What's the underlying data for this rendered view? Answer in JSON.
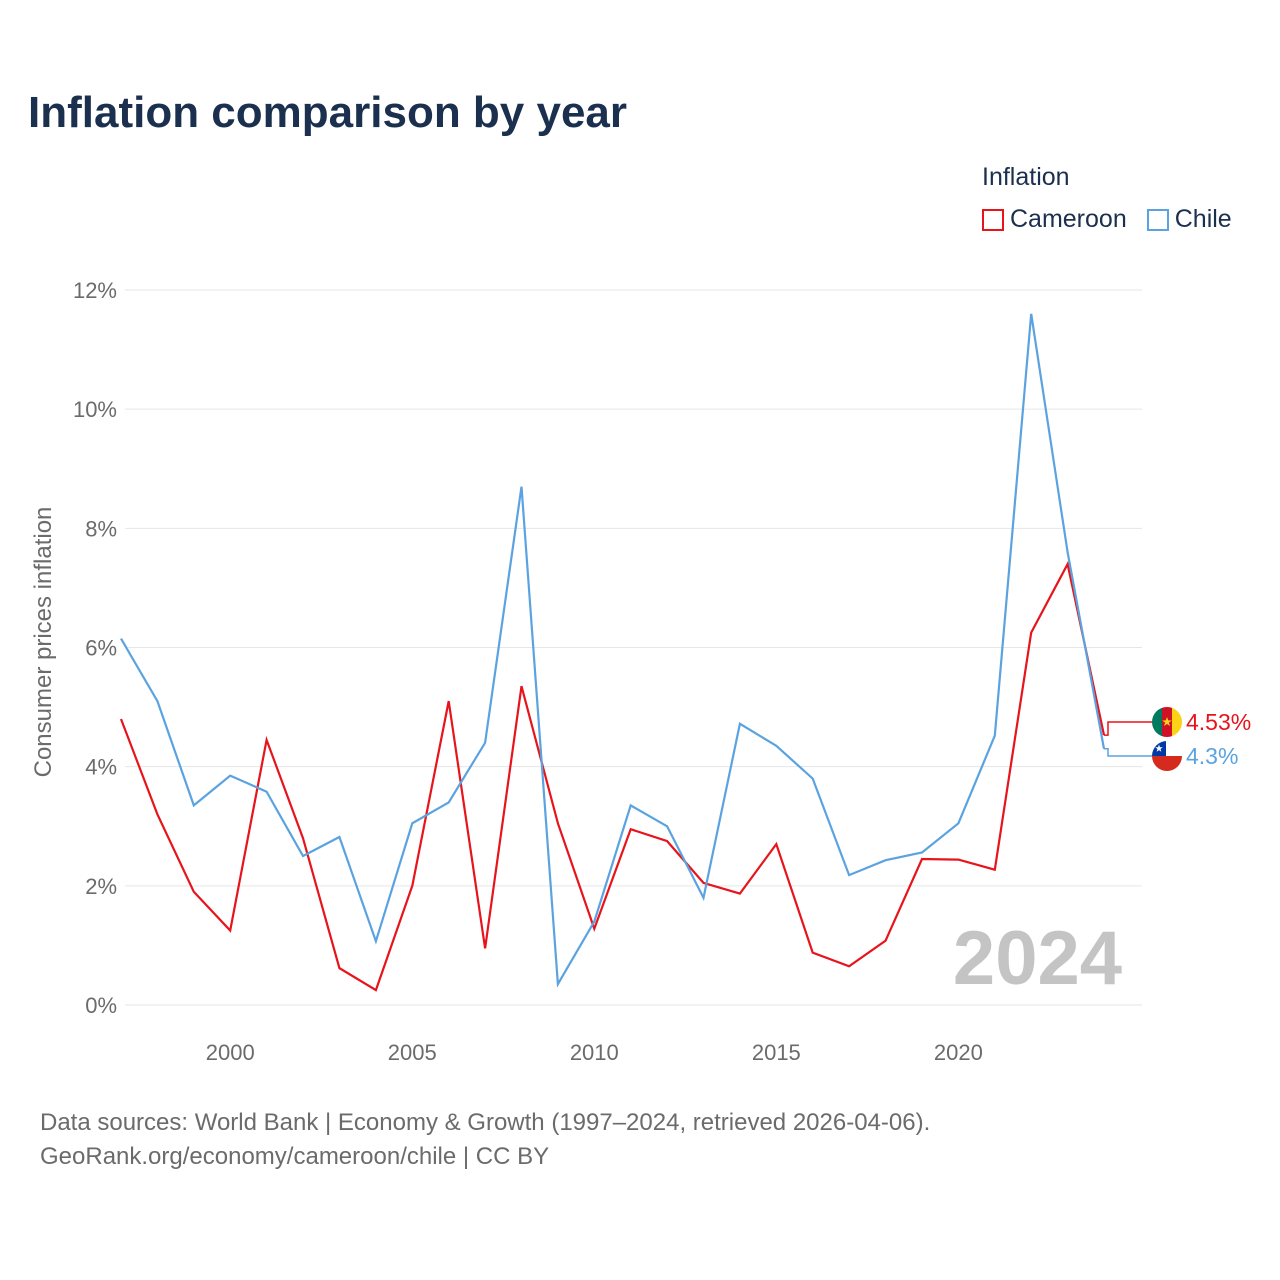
{
  "title": "Inflation comparison by year",
  "legend": {
    "title": "Inflation",
    "items": [
      {
        "label": "Cameroon",
        "color": "#e8141b"
      },
      {
        "label": "Chile",
        "color": "#5ba3e0"
      }
    ]
  },
  "footer": {
    "line1": "Data sources: World Bank | Economy & Growth (1997–2024, retrieved 2026-04-06).",
    "line2": "GeoRank.org/economy/cameroon/chile | CC BY"
  },
  "chart_data": {
    "type": "line",
    "title": "Inflation comparison by year",
    "xlabel": "",
    "ylabel": "Consumer prices inflation",
    "x": [
      1997,
      1998,
      1999,
      2000,
      2001,
      2002,
      2003,
      2004,
      2005,
      2006,
      2007,
      2008,
      2009,
      2010,
      2011,
      2012,
      2013,
      2014,
      2015,
      2016,
      2017,
      2018,
      2019,
      2020,
      2021,
      2022,
      2023,
      2024
    ],
    "xlim": [
      1997,
      2024
    ],
    "xticks": [
      2000,
      2005,
      2010,
      2015,
      2020
    ],
    "xtick_labels": [
      "2000",
      "2005",
      "2010",
      "2015",
      "2020"
    ],
    "ylim": [
      0,
      12
    ],
    "yticks": [
      0,
      2,
      4,
      6,
      8,
      10,
      12
    ],
    "ytick_labels": [
      "0%",
      "2%",
      "4%",
      "6%",
      "8%",
      "10%",
      "12%"
    ],
    "grid": true,
    "watermark_year": "2024",
    "series": [
      {
        "name": "Cameroon",
        "color": "#e8141b",
        "end_label": "4.53%",
        "flag": "cameroon",
        "values": [
          4.8,
          3.2,
          1.9,
          1.25,
          4.45,
          2.8,
          0.62,
          0.25,
          2.0,
          5.1,
          0.95,
          5.35,
          3.05,
          1.28,
          2.95,
          2.75,
          2.05,
          1.87,
          2.7,
          0.88,
          0.65,
          1.08,
          2.45,
          2.44,
          2.27,
          6.25,
          7.4,
          4.53
        ]
      },
      {
        "name": "Chile",
        "color": "#5ba3e0",
        "end_label": "4.3%",
        "flag": "chile",
        "values": [
          6.15,
          5.1,
          3.35,
          3.85,
          3.58,
          2.5,
          2.82,
          1.07,
          3.05,
          3.4,
          4.4,
          8.7,
          0.35,
          1.4,
          3.35,
          3.0,
          1.8,
          4.72,
          4.35,
          3.8,
          2.18,
          2.43,
          2.56,
          3.05,
          4.52,
          11.6,
          7.6,
          4.3
        ]
      }
    ]
  }
}
